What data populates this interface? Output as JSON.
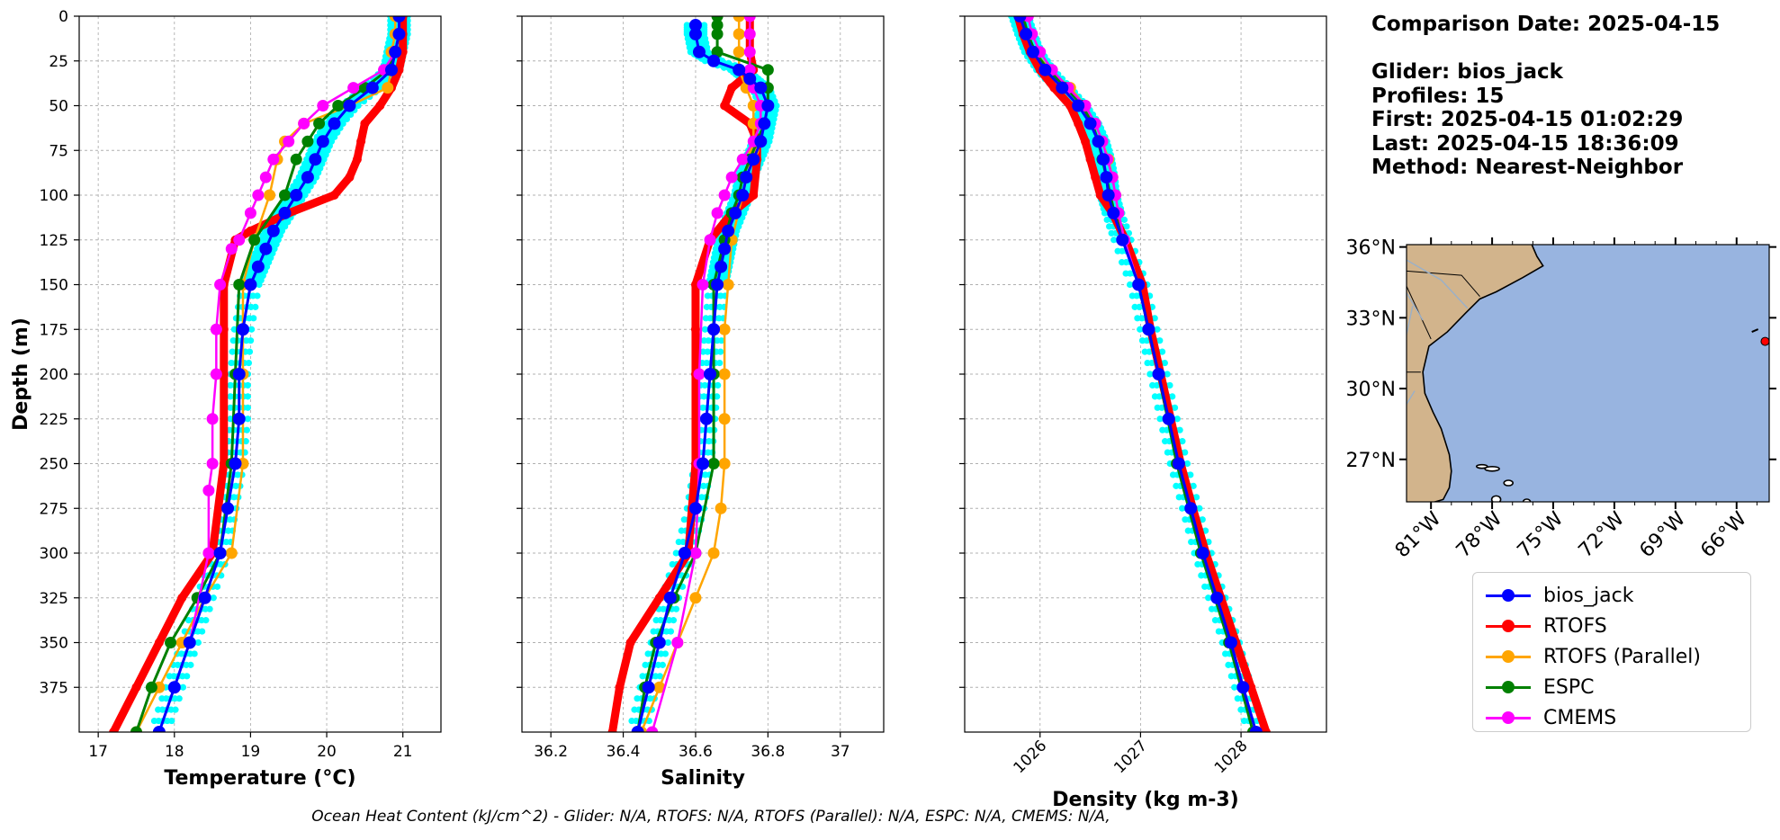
{
  "info": {
    "comparison": "Comparison Date: 2025-04-15",
    "glider": "Glider: bios_jack",
    "profiles": "Profiles: 15",
    "first": "First: 2025-04-15 01:02:29",
    "last": "Last: 2025-04-15 18:36:09",
    "method": "Method: Nearest-Neighbor"
  },
  "footer": "Ocean Heat Content (kJ/cm^2) - Glider: N/A,  RTOFS: N/A,  RTOFS (Parallel): N/A,  ESPC: N/A,  CMEMS: N/A,",
  "colors": {
    "bios_jack": "#0000ff",
    "RTOFS": "#ff0000",
    "RTOFS (Parallel)": "#ffa500",
    "ESPC": "#008000",
    "CMEMS": "#ff00ff",
    "glider_raw": "#00ffff",
    "land": "#d2b48c",
    "ocean": "#98b4e0"
  },
  "legend": [
    "bios_jack",
    "RTOFS",
    "RTOFS (Parallel)",
    "ESPC",
    "CMEMS"
  ],
  "chart_data": [
    {
      "type": "line",
      "name": "temperature",
      "xlabel": "Temperature (°C)",
      "ylabel": "Depth (m)",
      "xlim": [
        16.75,
        21.5
      ],
      "ylim": [
        400,
        0
      ],
      "xticks": [
        17,
        18,
        19,
        20,
        21
      ],
      "yticks": [
        0,
        25,
        50,
        75,
        100,
        125,
        150,
        175,
        200,
        225,
        250,
        275,
        300,
        325,
        350,
        375
      ],
      "grid": true,
      "series": [
        {
          "name": "bios_jack",
          "depth": [
            0,
            10,
            20,
            30,
            40,
            50,
            60,
            70,
            80,
            90,
            100,
            110,
            120,
            130,
            140,
            150,
            175,
            200,
            225,
            250,
            275,
            300,
            325,
            350,
            375,
            400
          ],
          "values": [
            20.95,
            20.95,
            20.9,
            20.85,
            20.6,
            20.3,
            20.1,
            19.95,
            19.85,
            19.75,
            19.6,
            19.45,
            19.3,
            19.2,
            19.1,
            19.0,
            18.9,
            18.85,
            18.85,
            18.8,
            18.7,
            18.6,
            18.4,
            18.2,
            18.0,
            17.8
          ]
        },
        {
          "name": "RTOFS",
          "depth": [
            0,
            10,
            20,
            30,
            40,
            50,
            60,
            70,
            80,
            90,
            100,
            110,
            120,
            125,
            150,
            175,
            200,
            250,
            300,
            325,
            350,
            375,
            400
          ],
          "values": [
            21.0,
            21.0,
            21.0,
            20.95,
            20.85,
            20.7,
            20.5,
            20.45,
            20.4,
            20.3,
            20.1,
            19.5,
            19.0,
            18.8,
            18.65,
            18.65,
            18.65,
            18.65,
            18.5,
            18.1,
            17.8,
            17.5,
            17.2
          ]
        },
        {
          "name": "RTOFS (Parallel)",
          "depth": [
            0,
            10,
            20,
            30,
            40,
            50,
            60,
            70,
            80,
            100,
            125,
            150,
            200,
            250,
            300,
            325,
            350,
            375,
            400
          ],
          "values": [
            20.9,
            20.9,
            20.85,
            20.85,
            20.8,
            20.3,
            19.7,
            19.45,
            19.35,
            19.25,
            19.05,
            18.9,
            18.9,
            18.9,
            18.75,
            18.4,
            18.1,
            17.8,
            17.5
          ]
        },
        {
          "name": "ESPC",
          "depth": [
            0,
            10,
            20,
            30,
            40,
            50,
            60,
            70,
            80,
            100,
            125,
            150,
            200,
            250,
            300,
            325,
            350,
            375,
            400
          ],
          "values": [
            20.95,
            20.95,
            20.9,
            20.8,
            20.5,
            20.15,
            19.9,
            19.75,
            19.6,
            19.45,
            19.05,
            18.85,
            18.8,
            18.75,
            18.6,
            18.3,
            17.95,
            17.7,
            17.5
          ]
        },
        {
          "name": "CMEMS",
          "depth": [
            0,
            10,
            20,
            30,
            40,
            50,
            60,
            70,
            80,
            90,
            100,
            110,
            125,
            130,
            150,
            175,
            200,
            225,
            250,
            265,
            300,
            350,
            375,
            400
          ],
          "values": [
            20.95,
            20.95,
            20.9,
            20.75,
            20.35,
            19.95,
            19.7,
            19.5,
            19.3,
            19.2,
            19.1,
            19.0,
            18.85,
            18.75,
            18.6,
            18.55,
            18.55,
            18.5,
            18.5,
            18.45,
            18.45,
            18.2,
            18.0,
            17.8
          ]
        }
      ]
    },
    {
      "type": "line",
      "name": "salinity",
      "xlabel": "Salinity",
      "xlim": [
        36.12,
        37.12
      ],
      "ylim": [
        400,
        0
      ],
      "xticks": [
        36.2,
        36.4,
        36.6,
        36.8,
        37.0
      ],
      "grid": true,
      "series": [
        {
          "name": "bios_jack",
          "depth": [
            5,
            10,
            20,
            25,
            30,
            35,
            40,
            50,
            60,
            70,
            80,
            90,
            100,
            110,
            120,
            130,
            140,
            150,
            175,
            200,
            225,
            250,
            275,
            300,
            325,
            350,
            375,
            400
          ],
          "values": [
            36.6,
            36.6,
            36.61,
            36.65,
            36.72,
            36.75,
            36.78,
            36.8,
            36.79,
            36.78,
            36.76,
            36.74,
            36.73,
            36.71,
            36.69,
            36.68,
            36.67,
            36.66,
            36.65,
            36.64,
            36.63,
            36.62,
            36.6,
            36.57,
            36.53,
            36.5,
            36.47,
            36.44
          ]
        },
        {
          "name": "RTOFS",
          "depth": [
            0,
            10,
            20,
            30,
            40,
            50,
            60,
            70,
            80,
            100,
            110,
            125,
            150,
            175,
            200,
            250,
            275,
            300,
            325,
            350,
            375,
            400
          ],
          "values": [
            36.75,
            36.75,
            36.75,
            36.76,
            36.7,
            36.68,
            36.75,
            36.77,
            36.77,
            36.76,
            36.7,
            36.64,
            36.6,
            36.6,
            36.6,
            36.6,
            36.59,
            36.58,
            36.5,
            36.42,
            36.39,
            36.37
          ]
        },
        {
          "name": "RTOFS (Parallel)",
          "depth": [
            0,
            10,
            20,
            30,
            40,
            50,
            60,
            75,
            100,
            125,
            150,
            175,
            200,
            225,
            250,
            275,
            300,
            325,
            350,
            375,
            400
          ],
          "values": [
            36.72,
            36.72,
            36.72,
            36.72,
            36.74,
            36.76,
            36.76,
            36.76,
            36.73,
            36.7,
            36.69,
            36.68,
            36.68,
            36.68,
            36.68,
            36.67,
            36.65,
            36.6,
            36.55,
            36.5,
            36.45
          ]
        },
        {
          "name": "ESPC",
          "depth": [
            0,
            5,
            10,
            20,
            30,
            40,
            50,
            60,
            70,
            80,
            90,
            100,
            110,
            125,
            150,
            200,
            250,
            300,
            325,
            350,
            375,
            400
          ],
          "values": [
            36.66,
            36.66,
            36.66,
            36.66,
            36.8,
            36.8,
            36.8,
            36.79,
            36.77,
            36.75,
            36.73,
            36.72,
            36.7,
            36.68,
            36.65,
            36.65,
            36.65,
            36.6,
            36.54,
            36.49,
            36.46,
            36.44
          ]
        },
        {
          "name": "CMEMS",
          "depth": [
            0,
            10,
            20,
            30,
            40,
            50,
            60,
            70,
            80,
            90,
            100,
            110,
            125,
            150,
            200,
            250,
            300,
            350,
            400
          ],
          "values": [
            36.75,
            36.75,
            36.75,
            36.75,
            36.76,
            36.78,
            36.78,
            36.76,
            36.73,
            36.7,
            36.68,
            36.66,
            36.64,
            36.62,
            36.61,
            36.61,
            36.6,
            36.55,
            36.48
          ]
        }
      ]
    },
    {
      "type": "line",
      "name": "density",
      "xlabel": "Density (kg m-3)",
      "xlim": [
        1025.25,
        1028.85
      ],
      "ylim": [
        400,
        0
      ],
      "xticks": [
        1026,
        1027,
        1028
      ],
      "grid": true,
      "series": [
        {
          "name": "bios_jack",
          "depth": [
            0,
            10,
            20,
            30,
            40,
            50,
            60,
            70,
            80,
            90,
            100,
            110,
            125,
            150,
            175,
            200,
            225,
            250,
            275,
            300,
            325,
            350,
            375,
            400
          ],
          "values": [
            1025.8,
            1025.86,
            1025.93,
            1026.05,
            1026.22,
            1026.38,
            1026.5,
            1026.58,
            1026.63,
            1026.66,
            1026.68,
            1026.73,
            1026.82,
            1026.98,
            1027.08,
            1027.18,
            1027.28,
            1027.38,
            1027.5,
            1027.62,
            1027.76,
            1027.9,
            1028.02,
            1028.15
          ]
        },
        {
          "name": "RTOFS",
          "depth": [
            0,
            10,
            20,
            30,
            40,
            50,
            60,
            70,
            80,
            90,
            100,
            110,
            125,
            150,
            175,
            200,
            225,
            250,
            275,
            300,
            325,
            350,
            375,
            400
          ],
          "values": [
            1025.78,
            1025.83,
            1025.9,
            1026.0,
            1026.14,
            1026.3,
            1026.38,
            1026.45,
            1026.5,
            1026.55,
            1026.6,
            1026.72,
            1026.85,
            1027.02,
            1027.1,
            1027.2,
            1027.3,
            1027.4,
            1027.52,
            1027.65,
            1027.8,
            1027.95,
            1028.1,
            1028.25
          ]
        },
        {
          "name": "RTOFS (Parallel)",
          "depth": [
            0,
            10,
            20,
            30,
            40,
            50,
            60,
            70,
            80,
            90,
            100,
            110,
            125,
            150,
            175,
            200,
            250,
            300,
            350,
            400
          ],
          "values": [
            1025.82,
            1025.88,
            1025.95,
            1026.1,
            1026.3,
            1026.45,
            1026.55,
            1026.62,
            1026.68,
            1026.72,
            1026.75,
            1026.78,
            1026.84,
            1026.98,
            1027.08,
            1027.18,
            1027.38,
            1027.62,
            1027.9,
            1028.15
          ]
        },
        {
          "name": "ESPC",
          "depth": [
            0,
            10,
            20,
            30,
            40,
            50,
            60,
            70,
            80,
            90,
            100,
            110,
            125,
            150,
            175,
            200,
            250,
            300,
            350,
            400
          ],
          "values": [
            1025.83,
            1025.88,
            1025.95,
            1026.08,
            1026.26,
            1026.42,
            1026.52,
            1026.58,
            1026.62,
            1026.66,
            1026.7,
            1026.74,
            1026.83,
            1026.98,
            1027.08,
            1027.18,
            1027.36,
            1027.6,
            1027.88,
            1028.12
          ]
        },
        {
          "name": "CMEMS",
          "depth": [
            0,
            10,
            20,
            30,
            40,
            50,
            60,
            70,
            80,
            90,
            100,
            110,
            125,
            150,
            175,
            200,
            250,
            300,
            350,
            400
          ],
          "values": [
            1025.88,
            1025.92,
            1026.0,
            1026.12,
            1026.28,
            1026.45,
            1026.55,
            1026.62,
            1026.67,
            1026.72,
            1026.75,
            1026.78,
            1026.84,
            1026.98,
            1027.08,
            1027.18,
            1027.38,
            1027.62,
            1027.9,
            1028.15
          ]
        }
      ]
    }
  ],
  "map": {
    "lat_ticks": [
      "36°N",
      "33°N",
      "30°N",
      "27°N"
    ],
    "lon_ticks": [
      "81°W",
      "78°W",
      "75°W",
      "72°W",
      "69°W",
      "66°W"
    ],
    "lat_values": [
      36,
      33,
      30,
      27
    ],
    "lon_values": [
      -81,
      -78,
      -75,
      -72,
      -69,
      -66
    ],
    "extent": [
      -82.2,
      -64.4,
      25.2,
      36.1
    ],
    "glider_position": [
      -64.6,
      32.0
    ]
  }
}
